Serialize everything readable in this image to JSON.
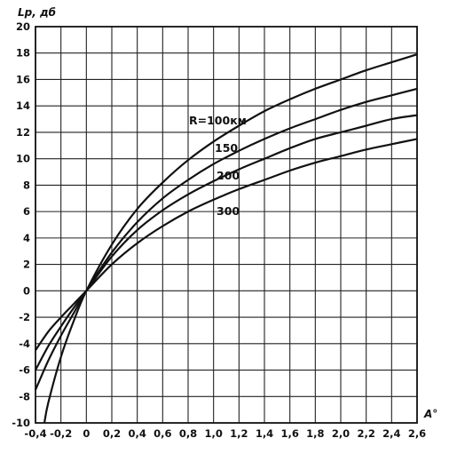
{
  "chart_data": {
    "type": "line",
    "ylabel": "Lp, дб",
    "xlabel": "A°",
    "xlim": [
      -0.4,
      2.6
    ],
    "ylim": [
      -10,
      20
    ],
    "grid": true,
    "x_ticks": [
      "-0,4",
      "-0,2",
      "0",
      "0,2",
      "0,4",
      "0,6",
      "0,8",
      "1,0",
      "1,2",
      "1,4",
      "1,6",
      "1,8",
      "2,0",
      "2,2",
      "2,4",
      "2,6"
    ],
    "y_ticks": [
      "-10",
      "-8",
      "-6",
      "-4",
      "-2",
      "0",
      "2",
      "4",
      "6",
      "8",
      "10",
      "12",
      "14",
      "16",
      "18",
      "20"
    ],
    "series": [
      {
        "name": "R=100км",
        "x": [
          -0.33,
          -0.3,
          -0.2,
          -0.1,
          0,
          0.2,
          0.4,
          0.6,
          0.8,
          1.0,
          1.2,
          1.4,
          1.6,
          1.8,
          2.0,
          2.2,
          2.4,
          2.6
        ],
        "y": [
          -10,
          -8.5,
          -5.0,
          -2.3,
          0,
          3.5,
          6.2,
          8.2,
          9.9,
          11.3,
          12.5,
          13.6,
          14.5,
          15.3,
          16.0,
          16.7,
          17.3,
          17.9
        ]
      },
      {
        "name": "150",
        "x": [
          -0.4,
          -0.3,
          -0.2,
          -0.1,
          0,
          0.2,
          0.4,
          0.6,
          0.8,
          1.0,
          1.2,
          1.4,
          1.6,
          1.8,
          2.0,
          2.2,
          2.4,
          2.6
        ],
        "y": [
          -7.5,
          -5.3,
          -3.4,
          -1.7,
          0,
          2.9,
          5.2,
          7.0,
          8.4,
          9.6,
          10.6,
          11.5,
          12.3,
          13.0,
          13.7,
          14.3,
          14.8,
          15.3
        ]
      },
      {
        "name": "200",
        "x": [
          -0.4,
          -0.3,
          -0.2,
          -0.1,
          0,
          0.2,
          0.4,
          0.6,
          0.8,
          1.0,
          1.2,
          1.4,
          1.6,
          1.8,
          2.0,
          2.2,
          2.4,
          2.6
        ],
        "y": [
          -6.0,
          -4.2,
          -2.7,
          -1.3,
          0,
          2.6,
          4.6,
          6.1,
          7.3,
          8.3,
          9.2,
          10.0,
          10.8,
          11.5,
          12.0,
          12.5,
          13.0,
          13.3
        ]
      },
      {
        "name": "300",
        "x": [
          -0.4,
          -0.3,
          -0.2,
          -0.1,
          0,
          0.2,
          0.4,
          0.6,
          0.8,
          1.0,
          1.2,
          1.4,
          1.6,
          1.8,
          2.0,
          2.2,
          2.4,
          2.6
        ],
        "y": [
          -4.5,
          -3.1,
          -2.0,
          -1.0,
          0,
          2.0,
          3.6,
          4.9,
          6.0,
          6.9,
          7.7,
          8.4,
          9.1,
          9.7,
          10.2,
          10.7,
          11.1,
          11.5
        ]
      }
    ]
  }
}
